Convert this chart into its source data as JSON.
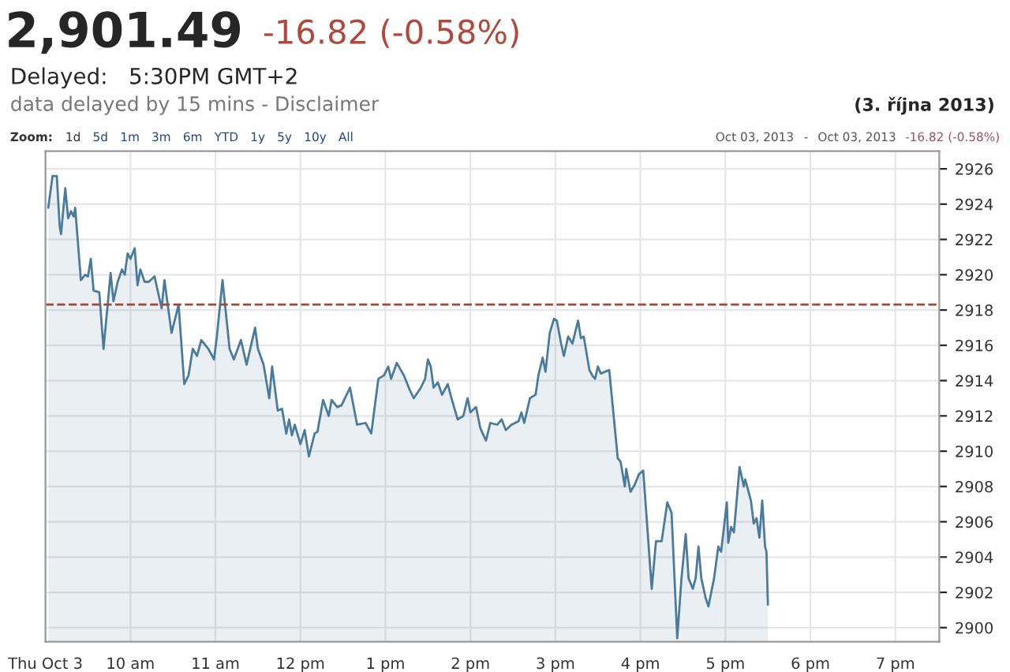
{
  "chart_data": {
    "type": "area",
    "title": "2,901.49",
    "subtitle": "-16.82 (-0.58%)",
    "annotations": [
      "Delayed:   5:30PM GMT+2",
      "data delayed by 15 mins - Disclaimer",
      "(3. října 2013)",
      "Zoom:",
      "1d",
      "5d",
      "1m",
      "3m",
      "6m",
      "YTD",
      "1y",
      "5y",
      "10y",
      "All",
      "Oct 03, 2013",
      "-",
      "Oct 03, 2013",
      "-16.82 (-0.58%)"
    ],
    "series": [
      {
        "color": "#4a7b9d",
        "x": [
          "2013-10-03T09:02",
          "2013-10-03T09:05",
          "2013-10-03T09:08",
          "2013-10-03T09:10",
          "2013-10-03T09:11",
          "2013-10-03T09:14",
          "2013-10-03T09:16",
          "2013-10-03T09:18",
          "2013-10-03T09:20",
          "2013-10-03T09:21",
          "2013-10-03T09:25",
          "2013-10-03T09:28",
          "2013-10-03T09:30",
          "2013-10-03T09:32",
          "2013-10-03T09:34",
          "2013-10-03T09:38",
          "2013-10-03T09:41",
          "2013-10-03T09:46",
          "2013-10-03T09:48",
          "2013-10-03T09:51",
          "2013-10-03T09:54",
          "2013-10-03T09:56",
          "2013-10-03T09:58",
          "2013-10-03T10:00",
          "2013-10-03T10:03",
          "2013-10-03T10:05",
          "2013-10-03T10:07",
          "2013-10-03T10:10",
          "2013-10-03T10:13",
          "2013-10-03T10:17",
          "2013-10-03T10:22",
          "2013-10-03T10:24",
          "2013-10-03T10:29",
          "2013-10-03T10:34",
          "2013-10-03T10:38",
          "2013-10-03T10:41",
          "2013-10-03T10:44",
          "2013-10-03T10:47",
          "2013-10-03T10:50",
          "2013-10-03T10:55",
          "2013-10-03T10:59",
          "2013-10-03T11:01",
          "2013-10-03T11:05",
          "2013-10-03T11:10",
          "2013-10-03T11:13",
          "2013-10-03T11:18",
          "2013-10-03T11:22",
          "2013-10-03T11:28",
          "2013-10-03T11:30",
          "2013-10-03T11:34",
          "2013-10-03T11:38",
          "2013-10-03T11:40",
          "2013-10-03T11:44",
          "2013-10-03T11:47",
          "2013-10-03T11:50",
          "2013-10-03T11:52",
          "2013-10-03T11:54",
          "2013-10-03T11:56",
          "2013-10-03T12:00",
          "2013-10-03T12:03",
          "2013-10-03T12:06",
          "2013-10-03T12:10",
          "2013-10-03T12:12",
          "2013-10-03T12:16",
          "2013-10-03T12:20",
          "2013-10-03T12:22",
          "2013-10-03T12:26",
          "2013-10-03T12:29",
          "2013-10-03T12:35",
          "2013-10-03T12:40",
          "2013-10-03T12:46",
          "2013-10-03T12:50",
          "2013-10-03T12:55",
          "2013-10-03T12:59",
          "2013-10-03T13:02",
          "2013-10-03T13:04",
          "2013-10-03T13:08",
          "2013-10-03T13:13",
          "2013-10-03T13:17",
          "2013-10-03T13:20",
          "2013-10-03T13:25",
          "2013-10-03T13:28",
          "2013-10-03T13:30",
          "2013-10-03T13:32",
          "2013-10-03T13:34",
          "2013-10-03T13:37",
          "2013-10-03T13:40",
          "2013-10-03T13:44",
          "2013-10-03T13:47",
          "2013-10-03T13:51",
          "2013-10-03T13:55",
          "2013-10-03T13:58",
          "2013-10-03T14:00",
          "2013-10-03T14:04",
          "2013-10-03T14:07",
          "2013-10-03T14:11",
          "2013-10-03T14:14",
          "2013-10-03T14:19",
          "2013-10-03T14:22",
          "2013-10-03T14:25",
          "2013-10-03T14:29",
          "2013-10-03T14:34",
          "2013-10-03T14:36",
          "2013-10-03T14:38",
          "2013-10-03T14:42",
          "2013-10-03T14:46",
          "2013-10-03T14:48",
          "2013-10-03T14:51",
          "2013-10-03T14:53",
          "2013-10-03T14:56",
          "2013-10-03T14:59",
          "2013-10-03T15:01",
          "2013-10-03T15:04",
          "2013-10-03T15:06",
          "2013-10-03T15:09",
          "2013-10-03T15:12",
          "2013-10-03T15:16",
          "2013-10-03T15:18",
          "2013-10-03T15:20",
          "2013-10-03T15:24",
          "2013-10-03T15:26",
          "2013-10-03T15:28",
          "2013-10-03T15:30",
          "2013-10-03T15:32",
          "2013-10-03T15:38",
          "2013-10-03T15:44",
          "2013-10-03T15:46",
          "2013-10-03T15:49",
          "2013-10-03T15:50",
          "2013-10-03T15:53",
          "2013-10-03T15:56",
          "2013-10-03T15:59",
          "2013-10-03T16:02",
          "2013-10-03T16:08",
          "2013-10-03T16:11",
          "2013-10-03T16:15",
          "2013-10-03T16:19",
          "2013-10-03T16:22",
          "2013-10-03T16:26",
          "2013-10-03T16:29",
          "2013-10-03T16:32",
          "2013-10-03T16:34",
          "2013-10-03T16:37",
          "2013-10-03T16:39",
          "2013-10-03T16:41",
          "2013-10-03T16:43",
          "2013-10-03T16:46",
          "2013-10-03T16:48",
          "2013-10-03T16:52",
          "2013-10-03T16:55",
          "2013-10-03T16:57",
          "2013-10-03T17:01",
          "2013-10-03T17:02",
          "2013-10-03T17:04",
          "2013-10-03T17:06",
          "2013-10-03T17:10",
          "2013-10-03T17:13",
          "2013-10-03T17:14",
          "2013-10-03T17:18",
          "2013-10-03T17:20",
          "2013-10-03T17:22",
          "2013-10-03T17:24",
          "2013-10-03T17:26",
          "2013-10-03T17:28",
          "2013-10-03T17:29",
          "2013-10-03T17:30"
        ],
        "values": [
          2923.8,
          2925.6,
          2925.6,
          2922.8,
          2922.3,
          2924.9,
          2923.2,
          2923.6,
          2923.3,
          2923.8,
          2919.7,
          2920.0,
          2919.9,
          2920.9,
          2919.1,
          2919.0,
          2915.8,
          2920.1,
          2918.5,
          2919.6,
          2920.3,
          2920.0,
          2921.2,
          2920.9,
          2921.5,
          2919.4,
          2920.3,
          2919.6,
          2919.6,
          2919.9,
          2918.1,
          2919.7,
          2916.7,
          2918.3,
          2913.8,
          2914.3,
          2915.8,
          2915.4,
          2916.3,
          2915.8,
          2915.2,
          2916.5,
          2919.7,
          2915.8,
          2915.2,
          2916.3,
          2914.9,
          2917.0,
          2915.8,
          2914.9,
          2913.0,
          2914.8,
          2912.3,
          2912.4,
          2911.0,
          2911.8,
          2910.9,
          2911.5,
          2910.4,
          2911.2,
          2909.7,
          2911.0,
          2911.1,
          2912.9,
          2912.0,
          2912.9,
          2912.5,
          2912.6,
          2913.6,
          2911.5,
          2911.6,
          2911.0,
          2914.1,
          2914.3,
          2914.8,
          2914.1,
          2915.0,
          2914.3,
          2913.5,
          2913.0,
          2913.6,
          2914.1,
          2915.2,
          2914.8,
          2913.6,
          2913.9,
          2913.2,
          2913.8,
          2912.9,
          2911.8,
          2912.0,
          2913.0,
          2912.2,
          2912.5,
          2911.3,
          2910.6,
          2911.6,
          2911.5,
          2911.8,
          2911.2,
          2911.5,
          2911.7,
          2912.2,
          2911.6,
          2913.0,
          2913.2,
          2914.3,
          2915.3,
          2914.5,
          2916.7,
          2917.5,
          2917.4,
          2916.1,
          2915.4,
          2916.5,
          2916.1,
          2917.4,
          2916.4,
          2916.5,
          2914.6,
          2914.3,
          2914.1,
          2914.8,
          2914.4,
          2914.6,
          2909.6,
          2909.4,
          2908.0,
          2909.0,
          2907.7,
          2908.1,
          2908.7,
          2908.9,
          2902.2,
          2904.9,
          2904.9,
          2907.1,
          2906.5,
          2899.4,
          2902.8,
          2905.3,
          2902.8,
          2902.2,
          2902.8,
          2904.6,
          2902.8,
          2901.7,
          2901.2,
          2902.8,
          2904.6,
          2904.3,
          2907.1,
          2904.8,
          2905.7,
          2905.4,
          2909.1,
          2908.0,
          2908.4,
          2907.2,
          2905.9,
          2906.2,
          2905.1,
          2907.2,
          2904.6,
          2904.3,
          2901.3
        ]
      }
    ],
    "xlim": [
      "2013-10-03T09:00",
      "2013-10-03T19:31"
    ],
    "xticks": [
      {
        "value": "2013-10-03T09:00",
        "label": "Thu Oct 3"
      },
      {
        "value": "2013-10-03T10:00",
        "label": "10 am"
      },
      {
        "value": "2013-10-03T11:00",
        "label": "11 am"
      },
      {
        "value": "2013-10-03T12:00",
        "label": "12 pm"
      },
      {
        "value": "2013-10-03T13:00",
        "label": "1 pm"
      },
      {
        "value": "2013-10-03T14:00",
        "label": "2 pm"
      },
      {
        "value": "2013-10-03T15:00",
        "label": "3 pm"
      },
      {
        "value": "2013-10-03T16:00",
        "label": "4 pm"
      },
      {
        "value": "2013-10-03T17:00",
        "label": "5 pm"
      },
      {
        "value": "2013-10-03T18:00",
        "label": "6 pm"
      },
      {
        "value": "2013-10-03T19:00",
        "label": "7 pm"
      }
    ],
    "ylim": [
      2899.2,
      2927
    ],
    "yticks": [
      2900,
      2902,
      2904,
      2906,
      2908,
      2910,
      2912,
      2914,
      2916,
      2918,
      2920,
      2922,
      2924,
      2926
    ],
    "ref_lines": [
      {
        "axis": "y",
        "value": 2918.31,
        "color": "#a0483a",
        "line_style": "dashed"
      }
    ],
    "grid": true
  }
}
